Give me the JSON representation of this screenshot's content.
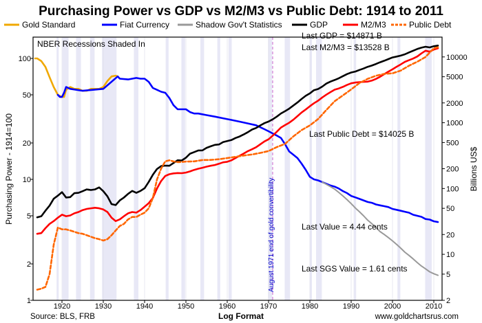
{
  "chart_data": {
    "type": "line",
    "title": "Purchasing Power vs GDP vs M2/M3 vs Public Debt: 1914 to 2011",
    "xlabel": "Log Format",
    "ylabel_left": "Purchasing Power - 1914=100",
    "ylabel_right": "Billions US$",
    "xlim": [
      1913,
      2012
    ],
    "x_ticks": [
      "1920",
      "1930",
      "1940",
      "1950",
      "1960",
      "1970",
      "1980",
      "1990",
      "2000",
      "2010"
    ],
    "left_axis": {
      "scale": "log",
      "range": [
        1,
        150
      ],
      "ticks": [
        "1",
        "2",
        "5",
        "10",
        "20",
        "50",
        "100"
      ]
    },
    "right_axis": {
      "scale": "log",
      "range": [
        2,
        20000
      ],
      "ticks": [
        "2",
        "5",
        "10",
        "20",
        "50",
        "100",
        "200",
        "500",
        "1000",
        "2000",
        "5000",
        "10000"
      ]
    },
    "legend": {
      "placement": "top",
      "items": [
        {
          "label": "Gold Standard",
          "color": "#f0a800",
          "style": "solid"
        },
        {
          "label": "Fiat Currency",
          "color": "#0000ff",
          "style": "solid"
        },
        {
          "label": "Shadow Gov't Statistics",
          "color": "#999999",
          "style": "solid"
        },
        {
          "label": "GDP",
          "color": "#000000",
          "style": "solid"
        },
        {
          "label": "M2/M3",
          "color": "#ff0000",
          "style": "solid"
        },
        {
          "label": "Public Debt",
          "color": "#ff6600",
          "style": "dashed"
        }
      ]
    },
    "recessions_note": "NBER Recessions Shaded In",
    "recessions": [
      [
        1918.7,
        1919.2
      ],
      [
        1920.1,
        1921.6
      ],
      [
        1923.4,
        1924.6
      ],
      [
        1926.8,
        1927.9
      ],
      [
        1929.7,
        1933.2
      ],
      [
        1937.4,
        1938.5
      ],
      [
        1945.1,
        1945.8
      ],
      [
        1948.9,
        1949.8
      ],
      [
        1953.5,
        1954.4
      ],
      [
        1957.6,
        1958.3
      ],
      [
        1960.3,
        1961.1
      ],
      [
        1969.9,
        1970.9
      ],
      [
        1973.9,
        1975.2
      ],
      [
        1980.0,
        1980.5
      ],
      [
        1981.5,
        1982.9
      ],
      [
        1990.6,
        1991.2
      ],
      [
        2001.2,
        2001.9
      ],
      [
        2007.9,
        2009.5
      ]
    ],
    "event_line": {
      "x": 1971,
      "label": "August 1971 end of gold convertibility"
    },
    "annotations": {
      "last_gdp": "Last GDP = $14871 B",
      "last_m2m3": "Last M2/M3 = $13528 B",
      "last_public_debt": "Last Public Debt = $14025 B",
      "last_value": "Last Value = 4.44 cents",
      "last_sgs_value": "Last SGS Value = 1.61 cents"
    },
    "series": [
      {
        "name": "Gold Standard",
        "axis": "left",
        "color": "#f0a800",
        "style": "solid",
        "x": [
          1913.5,
          1914,
          1915,
          1916,
          1917,
          1918,
          1919,
          1920,
          1920.5,
          1921,
          1922,
          1923,
          1924,
          1925,
          1926,
          1927,
          1928,
          1929,
          1930,
          1931,
          1932,
          1933,
          1933.5
        ],
        "y": [
          100,
          100,
          95,
          85,
          70,
          58,
          50,
          48,
          48,
          55,
          58,
          56,
          56,
          54,
          54,
          56,
          56,
          56,
          58,
          65,
          71,
          72,
          71
        ]
      },
      {
        "name": "Fiat Currency",
        "axis": "left",
        "color": "#0000ff",
        "style": "solid",
        "x": [
          1919,
          1919.5,
          1920,
          1920.5,
          1921,
          1922,
          1925,
          1930,
          1933.5,
          1934,
          1936,
          1938,
          1939,
          1940,
          1941,
          1942,
          1943,
          1944,
          1945,
          1946,
          1947,
          1948,
          1949,
          1950,
          1951,
          1952,
          1953,
          1955,
          1957,
          1959,
          1961,
          1963,
          1965,
          1967,
          1969,
          1970,
          1971,
          1972,
          1973,
          1974,
          1975,
          1976,
          1977,
          1978,
          1979,
          1980,
          1981,
          1982,
          1983,
          1984,
          1985,
          1986,
          1987,
          1988,
          1989,
          1990,
          1991,
          1992,
          1993,
          1994,
          1995,
          1996,
          1997,
          1998,
          1999,
          2000,
          2001,
          2002,
          2003,
          2004,
          2005,
          2006,
          2007,
          2008,
          2009,
          2010,
          2011
        ],
        "y": [
          50,
          48,
          48,
          52,
          58,
          56,
          54,
          56,
          71,
          68,
          67,
          69,
          68,
          68,
          64,
          57,
          55,
          53,
          52,
          47,
          41,
          38,
          38,
          38,
          36,
          35,
          35,
          34,
          33,
          32,
          31,
          30,
          29,
          28,
          26,
          25,
          24,
          23,
          22,
          19.5,
          17,
          16,
          15,
          13.5,
          12,
          10.5,
          10,
          9.8,
          9.5,
          9.2,
          8.9,
          8.7,
          8.4,
          8,
          7.7,
          7.3,
          7.1,
          6.9,
          6.7,
          6.5,
          6.4,
          6.2,
          6.1,
          6,
          5.9,
          5.7,
          5.6,
          5.5,
          5.4,
          5.3,
          5.1,
          5,
          4.9,
          4.7,
          4.65,
          4.5,
          4.44
        ]
      },
      {
        "name": "Shadow Gov't Statistics",
        "axis": "left",
        "color": "#999999",
        "style": "solid",
        "x": [
          1983,
          1984,
          1985,
          1986,
          1987,
          1988,
          1989,
          1990,
          1991,
          1992,
          1993,
          1994,
          1995,
          1996,
          1997,
          1998,
          1999,
          2000,
          2001,
          2002,
          2003,
          2004,
          2005,
          2006,
          2007,
          2008,
          2009,
          2010,
          2011
        ],
        "y": [
          9.5,
          9.1,
          8.7,
          8.3,
          7.8,
          7.3,
          6.8,
          6.3,
          5.8,
          5.4,
          5,
          4.6,
          4.3,
          4,
          3.7,
          3.5,
          3.3,
          3.1,
          2.9,
          2.7,
          2.5,
          2.35,
          2.2,
          2.05,
          1.92,
          1.82,
          1.72,
          1.66,
          1.61
        ]
      },
      {
        "name": "GDP",
        "axis": "right",
        "color": "#000000",
        "style": "solid",
        "x": [
          1914,
          1915,
          1916,
          1917,
          1918,
          1919,
          1920,
          1921,
          1922,
          1923,
          1924,
          1925,
          1926,
          1927,
          1928,
          1929,
          1930,
          1931,
          1932,
          1933,
          1934,
          1935,
          1936,
          1937,
          1938,
          1939,
          1940,
          1941,
          1942,
          1943,
          1944,
          1945,
          1946,
          1947,
          1948,
          1949,
          1950,
          1951,
          1952,
          1953,
          1954,
          1955,
          1956,
          1957,
          1958,
          1959,
          1960,
          1961,
          1962,
          1963,
          1964,
          1965,
          1966,
          1967,
          1968,
          1969,
          1970,
          1971,
          1972,
          1973,
          1974,
          1975,
          1976,
          1977,
          1978,
          1979,
          1980,
          1981,
          1982,
          1983,
          1984,
          1985,
          1986,
          1987,
          1988,
          1989,
          1990,
          1991,
          1992,
          1993,
          1994,
          1995,
          1996,
          1997,
          1998,
          1999,
          2000,
          2001,
          2002,
          2003,
          2004,
          2005,
          2006,
          2007,
          2008,
          2009,
          2010,
          2011
        ],
        "y": [
          36.5,
          38,
          46,
          55,
          70,
          78,
          88,
          73,
          74,
          85,
          86,
          91,
          97,
          95,
          97,
          104,
          91,
          76,
          58,
          56,
          66,
          73,
          83,
          92,
          86,
          92,
          101,
          126,
          162,
          198,
          219,
          223,
          222,
          244,
          269,
          267,
          294,
          339,
          358,
          379,
          380,
          415,
          438,
          461,
          467,
          507,
          526,
          545,
          586,
          618,
          664,
          719,
          788,
          832,
          910,
          985,
          1040,
          1127,
          1238,
          1383,
          1500,
          1638,
          1825,
          2031,
          2295,
          2566,
          2789,
          3128,
          3255,
          3537,
          3933,
          4220,
          4463,
          4740,
          5104,
          5484,
          5803,
          5996,
          6338,
          6657,
          7072,
          7398,
          7817,
          8304,
          8747,
          9268,
          9817,
          10128,
          10470,
          10961,
          11686,
          12422,
          13178,
          13808,
          14292,
          13939,
          14526,
          14871
        ]
      },
      {
        "name": "M2/M3",
        "axis": "right",
        "color": "#ff0000",
        "style": "solid",
        "x": [
          1914,
          1915,
          1916,
          1917,
          1918,
          1919,
          1920,
          1921,
          1922,
          1923,
          1924,
          1925,
          1926,
          1927,
          1928,
          1929,
          1930,
          1931,
          1932,
          1933,
          1934,
          1935,
          1936,
          1937,
          1938,
          1939,
          1940,
          1941,
          1942,
          1943,
          1944,
          1945,
          1946,
          1947,
          1948,
          1949,
          1950,
          1951,
          1952,
          1953,
          1954,
          1955,
          1956,
          1957,
          1958,
          1959,
          1960,
          1961,
          1962,
          1963,
          1964,
          1965,
          1966,
          1967,
          1968,
          1969,
          1970,
          1971,
          1972,
          1973,
          1974,
          1975,
          1976,
          1977,
          1978,
          1979,
          1980,
          1981,
          1982,
          1983,
          1984,
          1985,
          1986,
          1987,
          1988,
          1989,
          1990,
          1991,
          1992,
          1993,
          1994,
          1995,
          1996,
          1997,
          1998,
          1999,
          2000,
          2001,
          2002,
          2003,
          2004,
          2005,
          2006,
          2007,
          2008,
          2009,
          2010,
          2011
        ],
        "y": [
          20.5,
          21,
          25,
          29,
          32,
          36,
          40,
          38,
          39,
          42,
          44,
          47,
          49,
          50,
          51,
          50,
          48,
          44,
          36,
          32,
          34,
          38,
          42,
          44,
          43,
          47,
          53,
          60,
          72,
          100,
          130,
          155,
          165,
          170,
          172,
          171,
          175,
          182,
          192,
          200,
          207,
          215,
          222,
          228,
          238,
          250,
          255,
          268,
          290,
          315,
          340,
          370,
          395,
          425,
          470,
          520,
          560,
          635,
          730,
          845,
          920,
          1000,
          1110,
          1260,
          1430,
          1590,
          1780,
          1980,
          2160,
          2420,
          2670,
          2920,
          3180,
          3320,
          3510,
          3750,
          3970,
          4080,
          4130,
          4180,
          4210,
          4360,
          4640,
          4990,
          5470,
          5970,
          6480,
          7100,
          7690,
          8410,
          8920,
          9450,
          10150,
          11320,
          12420,
          12020,
          12950,
          13528
        ]
      },
      {
        "name": "Public Debt",
        "axis": "right",
        "color": "#ff6600",
        "style": "dashed",
        "x": [
          1914,
          1915,
          1916,
          1917,
          1918,
          1919,
          1920,
          1921,
          1922,
          1923,
          1924,
          1925,
          1926,
          1927,
          1928,
          1929,
          1930,
          1931,
          1932,
          1933,
          1934,
          1935,
          1936,
          1937,
          1938,
          1939,
          1940,
          1941,
          1942,
          1943,
          1944,
          1945,
          1946,
          1947,
          1948,
          1949,
          1950,
          1952,
          1954,
          1956,
          1958,
          1960,
          1962,
          1964,
          1966,
          1968,
          1970,
          1972,
          1974,
          1976,
          1978,
          1980,
          1982,
          1984,
          1986,
          1988,
          1990,
          1992,
          1994,
          1996,
          1998,
          2000,
          2002,
          2004,
          2006,
          2008,
          2010,
          2011
        ],
        "y": [
          2.9,
          3,
          3.2,
          5,
          14,
          25.5,
          24,
          24,
          23,
          22,
          21,
          20.5,
          19.5,
          18.5,
          17.6,
          17,
          16.2,
          17,
          19.5,
          23,
          27,
          29,
          34,
          37,
          37,
          40,
          43,
          50,
          72,
          137,
          201,
          259,
          269,
          258,
          252,
          253,
          257,
          259,
          271,
          272,
          279,
          290,
          303,
          317,
          329,
          348,
          371,
          427,
          476,
          620,
          772,
          909,
          1137,
          1564,
          2120,
          2601,
          3206,
          4001,
          4643,
          5181,
          5526,
          5629,
          6198,
          7354,
          8451,
          9986,
          13562,
          14025
        ]
      }
    ]
  }
}
